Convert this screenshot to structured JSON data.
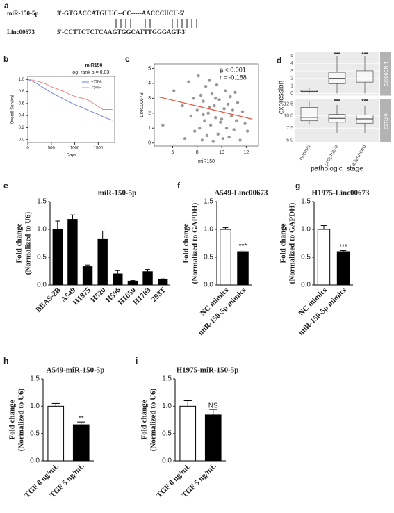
{
  "alignment": {
    "panel": "a",
    "mirna_name": "miR-150-5p",
    "mirna_seq": "3'-GTGACCATGUUC--CC-----AACCCUCU-5'",
    "target_name": "Linc00673",
    "target_seq": "5'-CCTTCTCTCAAGTGGCATTTGGGAGT-3'"
  },
  "chart_data": [
    {
      "type": "survival",
      "panel": "b",
      "title": "miR150",
      "subtitle": "log−rank p = 0.03",
      "xlabel": "Days",
      "ylabel": "Overall Survival",
      "xlim": [
        0,
        1850
      ],
      "xticks": [
        0,
        500,
        1000,
        1500
      ],
      "ylim": [
        -0.05,
        1.05
      ],
      "yticks": [
        {
          "value": 0,
          "label": "0.0"
        },
        0.2,
        0.4,
        0.6,
        0.8,
        {
          "value": 1,
          "label": "1.0"
        }
      ],
      "x": [
        0,
        100,
        200,
        300,
        400,
        500,
        600,
        700,
        800,
        900,
        1000,
        1100,
        1200,
        1300,
        1400,
        1500,
        1600,
        1700,
        1800
      ],
      "series": [
        {
          "name": "~75%",
          "color": "#6f7fe0",
          "values": [
            1,
            0.97,
            0.93,
            0.88,
            0.83,
            0.78,
            0.74,
            0.7,
            0.66,
            0.62,
            0.58,
            0.55,
            0.52,
            0.48,
            0.45,
            0.42,
            0.38,
            0.35,
            0.32
          ]
        },
        {
          "name": "75%~",
          "color": "#f07f7f",
          "values": [
            1,
            0.99,
            0.97,
            0.95,
            0.92,
            0.88,
            0.85,
            0.82,
            0.79,
            0.75,
            0.72,
            0.7,
            0.68,
            0.65,
            0.6,
            0.55,
            0.5,
            0.5,
            0.5
          ]
        }
      ]
    },
    {
      "type": "scatter",
      "panel": "c",
      "xlabel": "miR150",
      "ylabel": "LINC00673",
      "annotations": [
        "p < 0.001",
        "r = -0.188"
      ],
      "xlim": [
        4.5,
        13
      ],
      "xticks": [
        6,
        8,
        10,
        12
      ],
      "ylim": [
        -0.2,
        5.3
      ],
      "yticks": [
        0,
        1,
        2,
        3,
        4,
        5
      ],
      "color": "#555555",
      "fit_color": "#e8553f",
      "fit": {
        "x": [
          4.8,
          12.5
        ],
        "values": [
          3.1,
          1.6
        ]
      },
      "x": [
        5.2,
        6.1,
        6.8,
        7.0,
        7.3,
        7.5,
        7.7,
        7.8,
        8.0,
        8.1,
        8.2,
        8.3,
        8.4,
        8.5,
        8.6,
        8.7,
        8.8,
        8.9,
        9.0,
        9.1,
        9.2,
        9.3,
        9.4,
        9.5,
        9.6,
        9.7,
        9.8,
        9.9,
        10.0,
        10.1,
        10.2,
        10.3,
        10.4,
        10.5,
        10.6,
        10.7,
        10.8,
        10.9,
        11.0,
        11.1,
        11.2,
        11.3,
        11.5,
        11.7,
        11.9,
        12.1,
        9.0,
        8.5,
        10.0,
        9.5
      ],
      "values": [
        1.2,
        3.5,
        2.5,
        0.3,
        4.1,
        1.8,
        3.0,
        0.8,
        2.2,
        4.5,
        1.0,
        3.2,
        0.2,
        2.8,
        1.5,
        3.8,
        0.5,
        2.0,
        4.2,
        1.2,
        3.3,
        0.1,
        2.5,
        1.7,
        3.9,
        0.6,
        2.9,
        1.4,
        4.8,
        0.3,
        2.3,
        3.5,
        1.0,
        2.6,
        0.4,
        3.1,
        1.8,
        2.2,
        0.9,
        3.4,
        1.5,
        2.7,
        0.2,
        2.1,
        1.3,
        0.8,
        2.4,
        1.9,
        1.6,
        3.0
      ]
    },
    {
      "type": "box",
      "panel": "d",
      "xlabel": "pathologic_stage",
      "ylabel": "expression",
      "categories": [
        "normal",
        "prophase",
        "advanced"
      ],
      "facets": [
        {
          "name": "LINC00673",
          "ylim": [
            -0.3,
            5.5
          ],
          "yticks": [
            0,
            1,
            2,
            3,
            4,
            5
          ],
          "annotations": [
            null,
            "***",
            "***"
          ],
          "boxes": [
            {
              "low": 0,
              "q1": 0.15,
              "median": 0.25,
              "q3": 0.4,
              "high": 0.7
            },
            {
              "low": 0,
              "q1": 1.3,
              "median": 2.0,
              "q3": 2.8,
              "high": 5
            },
            {
              "low": 0,
              "q1": 1.5,
              "median": 2.3,
              "q3": 3.0,
              "high": 5
            }
          ]
        },
        {
          "name": "miR150",
          "ylim": [
            4.5,
            13.5
          ],
          "yticks": [
            {
              "value": 5,
              "label": "5.0"
            },
            7.5,
            {
              "value": 10,
              "label": "10.0"
            },
            {
              "value": 12.5,
              "label": "12.5"
            }
          ],
          "annotations": [
            null,
            "***",
            "***"
          ],
          "boxes": [
            {
              "low": 8.2,
              "q1": 9.0,
              "median": 9.7,
              "q3": 11.8,
              "high": 13
            },
            {
              "low": 6.5,
              "q1": 8.7,
              "median": 9.5,
              "q3": 10.3,
              "high": 12.3
            },
            {
              "low": 6.5,
              "q1": 8.5,
              "median": 9.4,
              "q3": 10.2,
              "high": 12
            }
          ]
        }
      ]
    },
    {
      "type": "bar",
      "panel": "e",
      "title": "miR-150-5p",
      "ylabel": [
        "Fold change",
        "(Normalized to U6)"
      ],
      "categories": [
        "BEAS-2B",
        "A549",
        "H1975",
        "H520",
        "H596",
        "H1650",
        "H1703",
        "293T"
      ],
      "values": [
        1.0,
        1.18,
        0.33,
        0.82,
        0.2,
        0.07,
        0.24,
        0.1
      ],
      "errors": [
        0.15,
        0.08,
        0.03,
        0.15,
        0.06,
        0.01,
        0.04,
        0.01
      ],
      "colors": [
        "#000000",
        "#000000",
        "#000000",
        "#000000",
        "#000000",
        "#000000",
        "#000000",
        "#000000"
      ],
      "ylim": [
        0,
        1.5
      ],
      "yticks": [
        {
          "value": 0,
          "label": "0.0"
        },
        0.5,
        {
          "value": 1,
          "label": "1.0"
        },
        {
          "value": 1.5,
          "label": "1.5"
        }
      ]
    },
    {
      "type": "bar",
      "panel": "f",
      "title": "A549-Linc00673",
      "ylabel": [
        "Fold change",
        "(Normalized to GAPDH)"
      ],
      "categories": [
        "NC mimics",
        "miR-150-5p mimics"
      ],
      "values": [
        1.0,
        0.6
      ],
      "errors": [
        0.03,
        0.03
      ],
      "colors": [
        "#ffffff",
        "#000000"
      ],
      "annotations": [
        null,
        "***"
      ],
      "ylim": [
        0,
        1.5
      ],
      "yticks": [
        {
          "value": 0,
          "label": "0.0"
        },
        0.5,
        {
          "value": 1,
          "label": "1.0"
        },
        {
          "value": 1.5,
          "label": "1.5"
        }
      ]
    },
    {
      "type": "bar",
      "panel": "g",
      "title": "H1975-Linc00673",
      "ylabel": [
        "Fold change",
        "(Normalized to GAPDH)"
      ],
      "categories": [
        "NC mimics",
        "miR-150-5p mimics"
      ],
      "values": [
        1.0,
        0.6
      ],
      "errors": [
        0.07,
        0.02
      ],
      "colors": [
        "#ffffff",
        "#000000"
      ],
      "annotations": [
        null,
        "***"
      ],
      "ylim": [
        0,
        1.5
      ],
      "yticks": [
        {
          "value": 0,
          "label": "0.0"
        },
        0.5,
        {
          "value": 1,
          "label": "1.0"
        },
        {
          "value": 1.5,
          "label": "1.5"
        }
      ]
    },
    {
      "type": "bar",
      "panel": "h",
      "title": "A549-miR-150-5p",
      "ylabel": [
        "Fold change",
        "(Normalized to U6)"
      ],
      "categories": [
        "TGF 0 ng/mL",
        "TGF 5 ng/mL"
      ],
      "values": [
        1.0,
        0.66
      ],
      "errors": [
        0.05,
        0.05
      ],
      "colors": [
        "#ffffff",
        "#000000"
      ],
      "annotations": [
        null,
        "**"
      ],
      "ylim": [
        0,
        1.5
      ],
      "yticks": [
        {
          "value": 0,
          "label": "0.0"
        },
        0.5,
        {
          "value": 1,
          "label": "1.0"
        },
        {
          "value": 1.5,
          "label": "1.5"
        }
      ]
    },
    {
      "type": "bar",
      "panel": "i",
      "title": "H1975-miR-150-5p",
      "ylabel": [
        "Fold change",
        "(Normalized to U6)"
      ],
      "categories": [
        "TGF 0 ng/mL",
        "TGF 5 ng/mL"
      ],
      "values": [
        1.0,
        0.84
      ],
      "errors": [
        0.1,
        0.1
      ],
      "colors": [
        "#ffffff",
        "#000000"
      ],
      "annotations": [
        null,
        "NS"
      ],
      "ylim": [
        0,
        1.5
      ],
      "yticks": [
        {
          "value": 0,
          "label": "0.0"
        },
        0.5,
        {
          "value": 1,
          "label": "1.0"
        },
        {
          "value": 1.5,
          "label": "1.5"
        }
      ]
    }
  ]
}
